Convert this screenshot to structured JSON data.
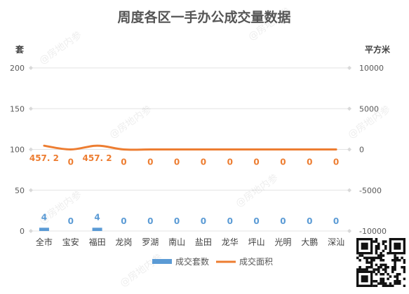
{
  "chart_data": {
    "type": "bar",
    "title": "周度各区一手办公成交量数据",
    "categories": [
      "全市",
      "宝安",
      "福田",
      "龙岗",
      "罗湖",
      "南山",
      "盐田",
      "龙华",
      "坪山",
      "光明",
      "大鹏",
      "深汕"
    ],
    "series": [
      {
        "name": "成交套数",
        "type": "bar",
        "axis": "left",
        "values": [
          4,
          0,
          4,
          0,
          0,
          0,
          0,
          0,
          0,
          0,
          0,
          0
        ],
        "labels": [
          "4",
          "0",
          "4",
          "0",
          "0",
          "0",
          "0",
          "0",
          "0",
          "0",
          "0",
          "0"
        ],
        "color": "#5B9BD5"
      },
      {
        "name": "成交面积",
        "type": "line",
        "axis": "right",
        "values": [
          457.2,
          0,
          457.2,
          0,
          0,
          0,
          0,
          0,
          0,
          0,
          0,
          0
        ],
        "labels": [
          "457. 2",
          "0",
          "457. 2",
          "0",
          "0",
          "0",
          "0",
          "0",
          "0",
          "0",
          "0",
          "0"
        ],
        "color": "#ED7D31"
      }
    ],
    "y_left": {
      "label": "套",
      "ylim": [
        0,
        200
      ],
      "ticks": [
        "0",
        "50",
        "100",
        "150",
        "200"
      ]
    },
    "y_right": {
      "label": "平方米",
      "ylim": [
        -10000,
        10000
      ],
      "ticks": [
        "-10000",
        "-5000",
        "0",
        "5000",
        "10000"
      ]
    },
    "grid": true,
    "legend_position": "bottom"
  },
  "watermark": "@房地内参"
}
